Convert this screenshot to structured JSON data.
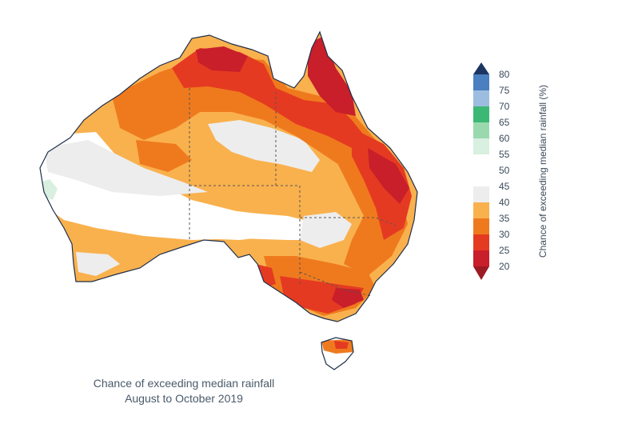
{
  "caption": {
    "line1": "Chance of exceeding median rainfall",
    "line2": "August to October 2019"
  },
  "legend": {
    "title": "Chance of exceeding median rainfall (%)",
    "ticks": [
      "80",
      "75",
      "70",
      "65",
      "60",
      "55",
      "50",
      "45",
      "40",
      "35",
      "30",
      "25",
      "20"
    ],
    "bins": [
      {
        "range": "75–80",
        "color": "#4a7fc0"
      },
      {
        "range": "70–75",
        "color": "#9dbde0"
      },
      {
        "range": "65–70",
        "color": "#3db874"
      },
      {
        "range": "60–65",
        "color": "#9ad8ae"
      },
      {
        "range": "55–60",
        "color": "#d9efe0"
      },
      {
        "range": "50–55",
        "color": "#ffffff"
      },
      {
        "range": "45–50",
        "color": "#ffffff"
      },
      {
        "range": "40–45",
        "color": "#ededed"
      },
      {
        "range": "35–40",
        "color": "#f9b14e"
      },
      {
        "range": "30–35",
        "color": "#ef7a1e"
      },
      {
        "range": "25–30",
        "color": "#e53a22"
      },
      {
        "range": "20–25",
        "color": "#c81f2a"
      }
    ],
    "top_arrow_color": "#1c3563",
    "bottom_arrow_color": "#9c1a24"
  },
  "map_colors": {
    "outline": "#1f2f4a",
    "border": "#555555"
  }
}
